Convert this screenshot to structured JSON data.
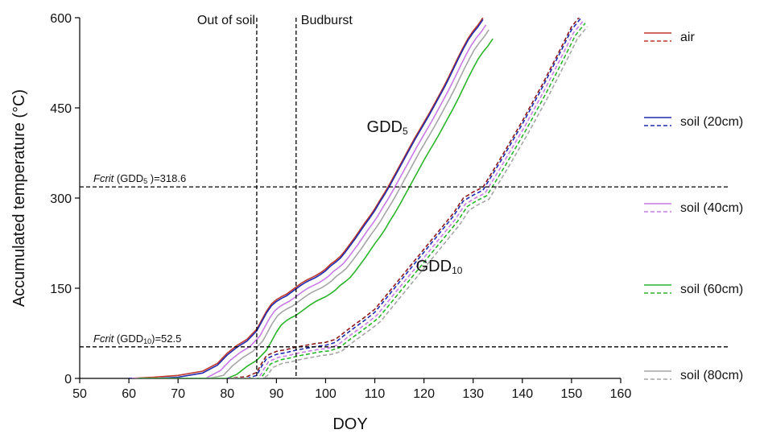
{
  "chart_data": {
    "type": "line",
    "xlabel": "DOY",
    "ylabel": "Accumulated temperature (°C)",
    "xlim": [
      50,
      160
    ],
    "ylim": [
      0,
      600
    ],
    "xticks": [
      "50",
      "60",
      "70",
      "80",
      "90",
      "100",
      "110",
      "120",
      "130",
      "140",
      "150",
      "160"
    ],
    "yticks": [
      "0",
      "150",
      "300",
      "450",
      "600"
    ],
    "grid": false,
    "legend_position": "right",
    "legend": [
      {
        "label": "air",
        "color": "#c0392b"
      },
      {
        "label": "soil (20cm)",
        "color": "#1f2bb0"
      },
      {
        "label": "soil (40cm)",
        "color": "#c77be6"
      },
      {
        "label": "soil (60cm)",
        "color": "#2bb52b"
      },
      {
        "label": "soil (80cm)",
        "color": "#a6a6a6"
      }
    ],
    "vlines": [
      {
        "x": 86,
        "label": "Out of soil"
      },
      {
        "x": 94,
        "label": "Budburst"
      }
    ],
    "hlines": [
      {
        "y": 318.6,
        "label_italic": "Fcrit",
        "label_open": " (GDD",
        "label_sub": "5",
        "label_close": " )=318.6"
      },
      {
        "y": 52.5,
        "label_italic": "Fcrit",
        "label_open": " (GDD",
        "label_sub": "10",
        "label_close": ")=52.5"
      }
    ],
    "group_labels": [
      {
        "main": "GDD",
        "sub": "5",
        "x": 110,
        "y": 410
      },
      {
        "main": "GDD",
        "sub": "10",
        "x": 120,
        "y": 178
      }
    ],
    "gdd5_x": [
      60,
      65,
      70,
      75,
      78,
      80,
      82,
      84,
      86,
      87,
      88,
      89,
      90,
      91,
      92,
      93,
      94,
      95,
      96,
      97,
      98,
      99,
      100,
      101,
      102,
      103,
      104,
      105,
      106,
      107,
      108,
      109,
      110,
      111,
      112,
      113,
      114,
      115,
      116,
      117,
      118,
      119,
      120,
      121,
      122,
      123,
      124,
      125,
      126,
      127,
      128,
      129,
      130,
      131,
      132
    ],
    "gdd5_air": [
      0,
      2,
      5,
      12,
      25,
      42,
      55,
      65,
      82,
      97,
      112,
      124,
      131,
      136,
      140,
      146,
      152,
      158,
      163,
      167,
      171,
      176,
      182,
      190,
      196,
      203,
      213,
      224,
      235,
      247,
      259,
      270,
      282,
      296,
      309,
      323,
      338,
      353,
      368,
      383,
      398,
      412,
      426,
      440,
      455,
      470,
      485,
      501,
      518,
      535,
      551,
      566,
      578,
      588,
      600
    ],
    "series": [
      {
        "name": "air",
        "color": "#c0392b",
        "group": "GDD5",
        "dashed": false,
        "offset": 0,
        "lag": 0
      },
      {
        "name": "soil (20cm)",
        "color": "#1f2bb0",
        "group": "GDD5",
        "dashed": false,
        "offset": -3,
        "lag": 0
      },
      {
        "name": "soil (40cm)",
        "color": "#c77be6",
        "group": "GDD5",
        "dashed": false,
        "offset": -12,
        "lag": 0.6
      },
      {
        "name": "soil (80cm)",
        "color": "#a6a6a6",
        "group": "GDD5",
        "dashed": false,
        "offset": -20,
        "lag": 1.2
      },
      {
        "name": "soil (60cm)",
        "color": "#2bb52b",
        "group": "GDD5",
        "dashed": false,
        "offset": -35,
        "lag": 2.0
      },
      {
        "name": "air",
        "color": "#8b1a1a",
        "group": "GDD10",
        "dashed": true,
        "offset": 0,
        "lag": 0
      },
      {
        "name": "soil (20cm)",
        "color": "#1f2bb0",
        "group": "GDD10",
        "dashed": true,
        "offset": -5,
        "lag": 0
      },
      {
        "name": "soil (40cm)",
        "color": "#c77be6",
        "group": "GDD10",
        "dashed": true,
        "offset": -10,
        "lag": 0.4
      },
      {
        "name": "soil (60cm)",
        "color": "#2bb52b",
        "group": "GDD10",
        "dashed": true,
        "offset": -14,
        "lag": 0.8
      },
      {
        "name": "soil (80cm)",
        "color": "#a6a6a6",
        "group": "GDD10",
        "dashed": true,
        "offset": -20,
        "lag": 1.2
      }
    ],
    "gdd10_x": [
      80,
      84,
      86,
      87,
      88,
      90,
      92,
      94,
      96,
      98,
      100,
      102,
      104,
      106,
      108,
      110,
      112,
      114,
      116,
      118,
      120,
      122,
      124,
      126,
      128,
      130,
      132,
      134,
      136,
      138,
      140,
      142,
      144,
      146,
      148,
      150,
      152
    ],
    "gdd10_air": [
      0,
      3,
      10,
      25,
      38,
      45,
      48,
      52,
      55,
      58,
      60,
      65,
      78,
      90,
      102,
      115,
      135,
      155,
      175,
      195,
      215,
      235,
      255,
      275,
      300,
      310,
      318,
      345,
      372,
      400,
      428,
      458,
      488,
      520,
      552,
      585,
      605
    ]
  }
}
